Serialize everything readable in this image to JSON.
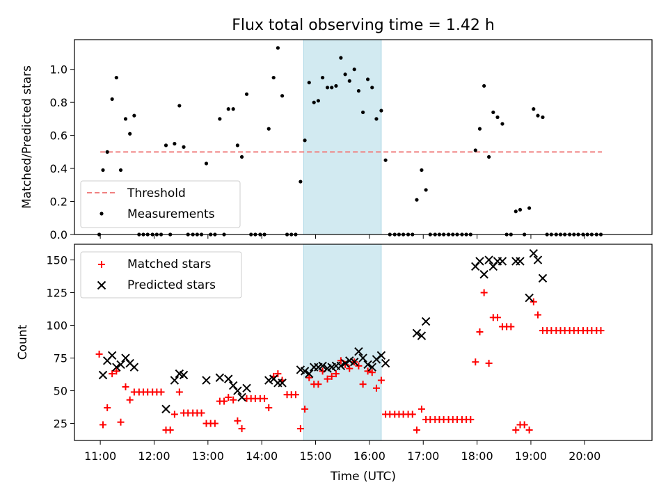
{
  "title": "Flux total observing time = 1.42 h",
  "highlight": {
    "start": 14.78,
    "end": 16.22,
    "color": "#add8e6"
  },
  "colors": {
    "threshold": "#f08080",
    "measurements": "#000000",
    "matched": "#ff0000",
    "predicted": "#000000"
  },
  "chart_data": [
    {
      "type": "scatter",
      "name": "ratio-panel",
      "ylabel": "Matched/Predicted stars",
      "xlim": [
        10.52,
        21.25
      ],
      "ylim": [
        0,
        1.18
      ],
      "yticks": [
        0.0,
        0.2,
        0.4,
        0.6,
        0.8,
        1.0
      ],
      "ytick_labels": [
        "0.0",
        "0.2",
        "0.4",
        "0.6",
        "0.8",
        "1.0"
      ],
      "legend": {
        "position": "lower-left",
        "threshold_label": "Threshold",
        "measurements_label": "Measurements"
      },
      "threshold": {
        "value": 0.5,
        "x_start": 11.0,
        "x_end": 20.32
      },
      "measurements": [
        [
          10.98,
          0.0
        ],
        [
          11.05,
          0.39
        ],
        [
          11.13,
          0.5
        ],
        [
          11.22,
          0.82
        ],
        [
          11.3,
          0.95
        ],
        [
          11.38,
          0.39
        ],
        [
          11.47,
          0.7
        ],
        [
          11.55,
          0.61
        ],
        [
          11.63,
          0.72
        ],
        [
          11.72,
          0.0
        ],
        [
          11.8,
          0.0
        ],
        [
          11.88,
          0.0
        ],
        [
          11.97,
          0.0
        ],
        [
          12.05,
          0.0
        ],
        [
          12.13,
          0.0
        ],
        [
          12.22,
          0.54
        ],
        [
          12.3,
          0.0
        ],
        [
          12.38,
          0.55
        ],
        [
          12.47,
          0.78
        ],
        [
          12.55,
          0.53
        ],
        [
          12.63,
          0.0
        ],
        [
          12.72,
          0.0
        ],
        [
          12.8,
          0.0
        ],
        [
          12.88,
          0.0
        ],
        [
          12.97,
          0.43
        ],
        [
          13.05,
          0.0
        ],
        [
          13.13,
          0.0
        ],
        [
          13.22,
          0.7
        ],
        [
          13.3,
          0.0
        ],
        [
          13.38,
          0.76
        ],
        [
          13.47,
          0.76
        ],
        [
          13.55,
          0.54
        ],
        [
          13.63,
          0.47
        ],
        [
          13.72,
          0.85
        ],
        [
          13.8,
          0.0
        ],
        [
          13.88,
          0.0
        ],
        [
          13.97,
          0.0
        ],
        [
          14.05,
          0.0
        ],
        [
          14.13,
          0.64
        ],
        [
          14.22,
          0.95
        ],
        [
          14.3,
          1.13
        ],
        [
          14.38,
          0.84
        ],
        [
          14.47,
          0.0
        ],
        [
          14.55,
          0.0
        ],
        [
          14.63,
          0.0
        ],
        [
          14.72,
          0.32
        ],
        [
          14.8,
          0.57
        ],
        [
          14.88,
          0.92
        ],
        [
          14.97,
          0.8
        ],
        [
          15.05,
          0.81
        ],
        [
          15.13,
          0.95
        ],
        [
          15.22,
          0.89
        ],
        [
          15.3,
          0.89
        ],
        [
          15.38,
          0.9
        ],
        [
          15.47,
          1.07
        ],
        [
          15.55,
          0.97
        ],
        [
          15.63,
          0.93
        ],
        [
          15.72,
          1.0
        ],
        [
          15.8,
          0.87
        ],
        [
          15.88,
          0.74
        ],
        [
          15.97,
          0.94
        ],
        [
          16.05,
          0.89
        ],
        [
          16.13,
          0.7
        ],
        [
          16.22,
          0.75
        ],
        [
          16.3,
          0.45
        ],
        [
          16.38,
          0.0
        ],
        [
          16.47,
          0.0
        ],
        [
          16.55,
          0.0
        ],
        [
          16.63,
          0.0
        ],
        [
          16.72,
          0.0
        ],
        [
          16.8,
          0.0
        ],
        [
          16.88,
          0.21
        ],
        [
          16.97,
          0.39
        ],
        [
          17.05,
          0.27
        ],
        [
          17.13,
          0.0
        ],
        [
          17.22,
          0.0
        ],
        [
          17.3,
          0.0
        ],
        [
          17.38,
          0.0
        ],
        [
          17.47,
          0.0
        ],
        [
          17.55,
          0.0
        ],
        [
          17.63,
          0.0
        ],
        [
          17.72,
          0.0
        ],
        [
          17.8,
          0.0
        ],
        [
          17.88,
          0.0
        ],
        [
          17.97,
          0.51
        ],
        [
          18.05,
          0.64
        ],
        [
          18.13,
          0.9
        ],
        [
          18.22,
          0.47
        ],
        [
          18.3,
          0.74
        ],
        [
          18.38,
          0.71
        ],
        [
          18.47,
          0.67
        ],
        [
          18.55,
          0.0
        ],
        [
          18.63,
          0.0
        ],
        [
          18.72,
          0.14
        ],
        [
          18.8,
          0.15
        ],
        [
          18.88,
          0.0
        ],
        [
          18.97,
          0.16
        ],
        [
          19.05,
          0.76
        ],
        [
          19.13,
          0.72
        ],
        [
          19.22,
          0.71
        ],
        [
          19.3,
          0.0
        ],
        [
          19.38,
          0.0
        ],
        [
          19.47,
          0.0
        ],
        [
          19.55,
          0.0
        ],
        [
          19.63,
          0.0
        ],
        [
          19.72,
          0.0
        ],
        [
          19.8,
          0.0
        ],
        [
          19.88,
          0.0
        ],
        [
          19.97,
          0.0
        ],
        [
          20.05,
          0.0
        ],
        [
          20.13,
          0.0
        ],
        [
          20.22,
          0.0
        ],
        [
          20.3,
          0.0
        ]
      ]
    },
    {
      "type": "scatter",
      "name": "count-panel",
      "title": "",
      "ylabel": "Count",
      "xlabel": "Time (UTC)",
      "xlim": [
        10.52,
        21.25
      ],
      "ylim": [
        12,
        162
      ],
      "yticks": [
        25,
        50,
        75,
        100,
        125,
        150
      ],
      "ytick_labels": [
        "25",
        "50",
        "75",
        "100",
        "125",
        "150"
      ],
      "xticks": [
        11,
        12,
        13,
        14,
        15,
        16,
        17,
        18,
        19,
        20
      ],
      "xtick_labels": [
        "11:00",
        "12:00",
        "13:00",
        "14:00",
        "15:00",
        "16:00",
        "17:00",
        "18:00",
        "19:00",
        "20:00"
      ],
      "legend": {
        "position": "upper-left",
        "matched_label": "Matched stars",
        "predicted_label": "Predicted stars"
      },
      "matched": [
        [
          10.98,
          78
        ],
        [
          11.05,
          24
        ],
        [
          11.13,
          37
        ],
        [
          11.22,
          63
        ],
        [
          11.3,
          65
        ],
        [
          11.38,
          26
        ],
        [
          11.47,
          53
        ],
        [
          11.55,
          43
        ],
        [
          11.63,
          49
        ],
        [
          11.72,
          49
        ],
        [
          11.8,
          49
        ],
        [
          11.88,
          49
        ],
        [
          11.97,
          49
        ],
        [
          12.05,
          49
        ],
        [
          12.13,
          49
        ],
        [
          12.22,
          20
        ],
        [
          12.3,
          20
        ],
        [
          12.38,
          32
        ],
        [
          12.47,
          49
        ],
        [
          12.55,
          33
        ],
        [
          12.63,
          33
        ],
        [
          12.72,
          33
        ],
        [
          12.8,
          33
        ],
        [
          12.88,
          33
        ],
        [
          12.97,
          25
        ],
        [
          13.05,
          25
        ],
        [
          13.13,
          25
        ],
        [
          13.22,
          42
        ],
        [
          13.3,
          42
        ],
        [
          13.38,
          45
        ],
        [
          13.47,
          43
        ],
        [
          13.55,
          27
        ],
        [
          13.63,
          21
        ],
        [
          13.72,
          44
        ],
        [
          13.8,
          44
        ],
        [
          13.88,
          44
        ],
        [
          13.97,
          44
        ],
        [
          14.05,
          44
        ],
        [
          14.13,
          37
        ],
        [
          14.22,
          61
        ],
        [
          14.3,
          63
        ],
        [
          14.38,
          58
        ],
        [
          14.47,
          47
        ],
        [
          14.55,
          47
        ],
        [
          14.63,
          47
        ],
        [
          14.72,
          21
        ],
        [
          14.8,
          36
        ],
        [
          14.88,
          60
        ],
        [
          14.97,
          55
        ],
        [
          15.05,
          55
        ],
        [
          15.13,
          65
        ],
        [
          15.22,
          59
        ],
        [
          15.3,
          61
        ],
        [
          15.38,
          63
        ],
        [
          15.47,
          73
        ],
        [
          15.55,
          70
        ],
        [
          15.63,
          67
        ],
        [
          15.72,
          72
        ],
        [
          15.8,
          69
        ],
        [
          15.88,
          55
        ],
        [
          15.97,
          65
        ],
        [
          16.05,
          64
        ],
        [
          16.13,
          52
        ],
        [
          16.22,
          58
        ],
        [
          16.3,
          32
        ],
        [
          16.38,
          32
        ],
        [
          16.47,
          32
        ],
        [
          16.55,
          32
        ],
        [
          16.63,
          32
        ],
        [
          16.72,
          32
        ],
        [
          16.8,
          32
        ],
        [
          16.88,
          20
        ],
        [
          16.97,
          36
        ],
        [
          17.05,
          28
        ],
        [
          17.13,
          28
        ],
        [
          17.22,
          28
        ],
        [
          17.3,
          28
        ],
        [
          17.38,
          28
        ],
        [
          17.47,
          28
        ],
        [
          17.55,
          28
        ],
        [
          17.63,
          28
        ],
        [
          17.72,
          28
        ],
        [
          17.8,
          28
        ],
        [
          17.88,
          28
        ],
        [
          17.97,
          72
        ],
        [
          18.05,
          95
        ],
        [
          18.13,
          125
        ],
        [
          18.22,
          71
        ],
        [
          18.3,
          106
        ],
        [
          18.38,
          106
        ],
        [
          18.47,
          99
        ],
        [
          18.55,
          99
        ],
        [
          18.63,
          99
        ],
        [
          18.72,
          20
        ],
        [
          18.8,
          24
        ],
        [
          18.88,
          24
        ],
        [
          18.97,
          20
        ],
        [
          19.05,
          118
        ],
        [
          19.13,
          108
        ],
        [
          19.22,
          96
        ],
        [
          19.3,
          96
        ],
        [
          19.38,
          96
        ],
        [
          19.47,
          96
        ],
        [
          19.55,
          96
        ],
        [
          19.63,
          96
        ],
        [
          19.72,
          96
        ],
        [
          19.8,
          96
        ],
        [
          19.88,
          96
        ],
        [
          19.97,
          96
        ],
        [
          20.05,
          96
        ],
        [
          20.13,
          96
        ],
        [
          20.22,
          96
        ],
        [
          20.3,
          96
        ]
      ],
      "predicted": [
        [
          11.05,
          62
        ],
        [
          11.13,
          73
        ],
        [
          11.22,
          77
        ],
        [
          11.3,
          68
        ],
        [
          11.38,
          70
        ],
        [
          11.47,
          75
        ],
        [
          11.55,
          71
        ],
        [
          11.63,
          68
        ],
        [
          12.22,
          36
        ],
        [
          12.38,
          58
        ],
        [
          12.47,
          63
        ],
        [
          12.55,
          62
        ],
        [
          12.97,
          58
        ],
        [
          13.22,
          60
        ],
        [
          13.38,
          59
        ],
        [
          13.47,
          54
        ],
        [
          13.55,
          50
        ],
        [
          13.63,
          45
        ],
        [
          13.72,
          52
        ],
        [
          14.13,
          58
        ],
        [
          14.22,
          59
        ],
        [
          14.3,
          56
        ],
        [
          14.38,
          56
        ],
        [
          14.72,
          66
        ],
        [
          14.8,
          65
        ],
        [
          14.88,
          63
        ],
        [
          14.97,
          68
        ],
        [
          15.05,
          68
        ],
        [
          15.13,
          69
        ],
        [
          15.22,
          67
        ],
        [
          15.3,
          68
        ],
        [
          15.38,
          69
        ],
        [
          15.47,
          69
        ],
        [
          15.55,
          71
        ],
        [
          15.63,
          73
        ],
        [
          15.72,
          72
        ],
        [
          15.8,
          80
        ],
        [
          15.88,
          75
        ],
        [
          15.97,
          70
        ],
        [
          16.05,
          68
        ],
        [
          16.13,
          74
        ],
        [
          16.22,
          77
        ],
        [
          16.3,
          71
        ],
        [
          16.88,
          94
        ],
        [
          16.97,
          92
        ],
        [
          17.05,
          103
        ],
        [
          17.97,
          145
        ],
        [
          18.05,
          149
        ],
        [
          18.13,
          139
        ],
        [
          18.22,
          150
        ],
        [
          18.3,
          145
        ],
        [
          18.38,
          149
        ],
        [
          18.47,
          149
        ],
        [
          18.72,
          149
        ],
        [
          18.8,
          149
        ],
        [
          18.97,
          121
        ],
        [
          19.05,
          155
        ],
        [
          19.13,
          150
        ],
        [
          19.22,
          136
        ]
      ]
    }
  ]
}
